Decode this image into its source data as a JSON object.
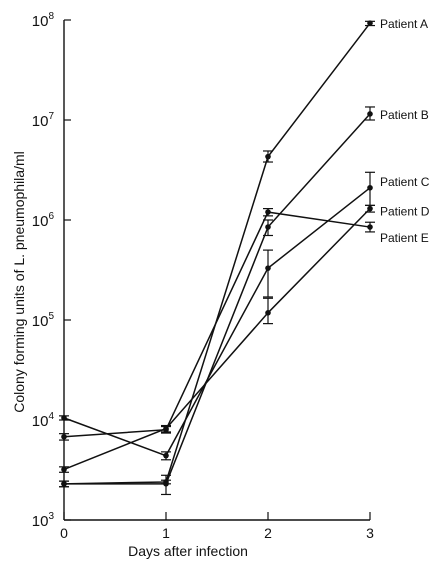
{
  "chart_data": {
    "type": "line",
    "xlabel": "Days after infection",
    "ylabel": "Colony forming units of L. pneumophila/ml",
    "x": [
      0,
      1,
      2,
      3
    ],
    "xticks": [
      "0",
      "1",
      "2",
      "3"
    ],
    "ylim": [
      1000,
      100000000
    ],
    "yscale": "log",
    "yticks": [
      {
        "value": 1000,
        "base": "10",
        "exp": "3"
      },
      {
        "value": 10000,
        "base": "10",
        "exp": "4"
      },
      {
        "value": 100000,
        "base": "10",
        "exp": "5"
      },
      {
        "value": 1000000,
        "base": "10",
        "exp": "6"
      },
      {
        "value": 10000000,
        "base": "10",
        "exp": "7"
      },
      {
        "value": 100000000,
        "base": "10",
        "exp": "8"
      }
    ],
    "grid": false,
    "legend": "direct labels at right end of each line",
    "series": [
      {
        "name": "Patient A",
        "values": [
          2300,
          2400,
          4300000,
          93000000
        ],
        "err_low": [
          2150,
          2300,
          3800000,
          88000000
        ],
        "err_high": [
          2450,
          2500,
          4900000,
          97000000
        ]
      },
      {
        "name": "Patient B",
        "values": [
          2300,
          2300,
          850000,
          11500000
        ],
        "err_low": [
          2150,
          1800,
          700000,
          10000000
        ],
        "err_high": [
          2450,
          2800,
          1000000,
          13500000
        ]
      },
      {
        "name": "Patient C",
        "values": [
          10500,
          4400,
          330000,
          2100000
        ],
        "err_low": [
          10000,
          4000,
          170000,
          1400000
        ],
        "err_high": [
          11000,
          4800,
          500000,
          3000000
        ]
      },
      {
        "name": "Patient D",
        "values": [
          3200,
          8200,
          118000,
          1300000
        ],
        "err_low": [
          3000,
          7600,
          92000,
          1200000
        ],
        "err_high": [
          3400,
          8800,
          165000,
          1400000
        ]
      },
      {
        "name": "Patient E",
        "values": [
          6800,
          8000,
          1200000,
          850000
        ],
        "err_low": [
          6300,
          7400,
          1100000,
          760000
        ],
        "err_high": [
          7300,
          8600,
          1300000,
          950000
        ]
      }
    ]
  }
}
